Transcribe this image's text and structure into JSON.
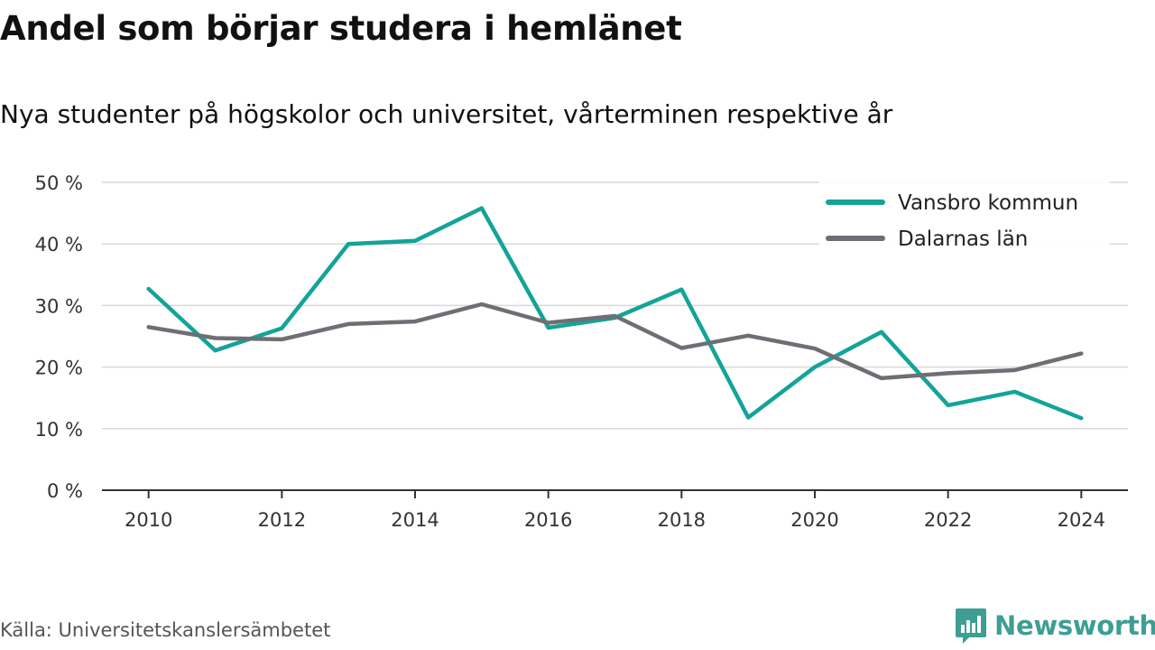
{
  "title": "Andel som börjar studera i hemlänet",
  "subtitle": "Nya studenter på högskolor och universitet, vårterminen respektive år",
  "source": "Källa: Universitetskanslersämbetet",
  "brand": {
    "name": "Newsworthy",
    "icon": "newsworthy-logo-icon",
    "color": "#3e9e93"
  },
  "chart_data": {
    "type": "line",
    "x": [
      2010,
      2011,
      2012,
      2013,
      2014,
      2015,
      2016,
      2017,
      2018,
      2019,
      2020,
      2021,
      2022,
      2023,
      2024
    ],
    "xticks": [
      2010,
      2012,
      2014,
      2016,
      2018,
      2020,
      2022,
      2024
    ],
    "xtick_labels": [
      "2010",
      "2012",
      "2014",
      "2016",
      "2018",
      "2020",
      "2022",
      "2024"
    ],
    "yticks": [
      0,
      10,
      20,
      30,
      40,
      50
    ],
    "ytick_labels": [
      "0 %",
      "10 %",
      "20 %",
      "30 %",
      "40 %",
      "50 %"
    ],
    "ylim": [
      0,
      50
    ],
    "xlim": [
      2009.3,
      2024.7
    ],
    "grid": true,
    "legend_position": "top-right",
    "series": [
      {
        "name": "Vansbro kommun",
        "color": "#13a399",
        "values": [
          32.7,
          22.7,
          26.3,
          40.0,
          40.5,
          45.8,
          26.4,
          28.0,
          32.6,
          11.8,
          20.0,
          25.7,
          13.8,
          16.0,
          11.7
        ]
      },
      {
        "name": "Dalarnas län",
        "color": "#6f6e75",
        "values": [
          26.5,
          24.7,
          24.5,
          27.0,
          27.4,
          30.2,
          27.2,
          28.3,
          23.1,
          25.1,
          23.0,
          18.2,
          19.0,
          19.5,
          22.2
        ]
      }
    ]
  }
}
